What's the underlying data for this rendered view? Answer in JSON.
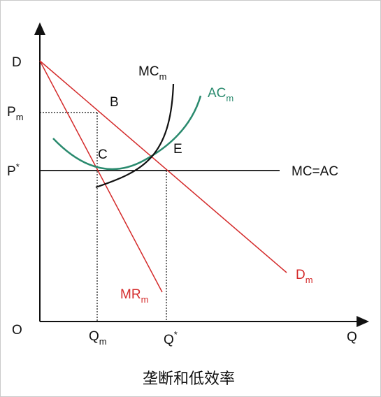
{
  "labels": {
    "price_axis": "D",
    "pm_main": "P",
    "pm_sub": "m",
    "pstar_main": "P",
    "pstar_sup": "*",
    "origin": "O",
    "qm_main": "Q",
    "qm_sub": "m",
    "qstar_main": "Q",
    "qstar_sup": "*",
    "q_axis": "Q",
    "point_b": "B",
    "point_c": "C",
    "point_e": "E",
    "mcm_main": "MC",
    "mcm_sub": "m",
    "acm_main": "AC",
    "acm_sub": "m",
    "mc_ac": "MC=AC",
    "dm_main": "D",
    "dm_sub": "m",
    "mrm_main": "MR",
    "mrm_sub": "m"
  },
  "caption": "垄断和低效率",
  "colors": {
    "axis": "#111111",
    "demand": "#d42a2a",
    "marginal_revenue": "#d42a2a",
    "mc_monopoly": "#111111",
    "ac_monopoly": "#2a8a6e",
    "mc_equals_ac": "#111111"
  }
}
